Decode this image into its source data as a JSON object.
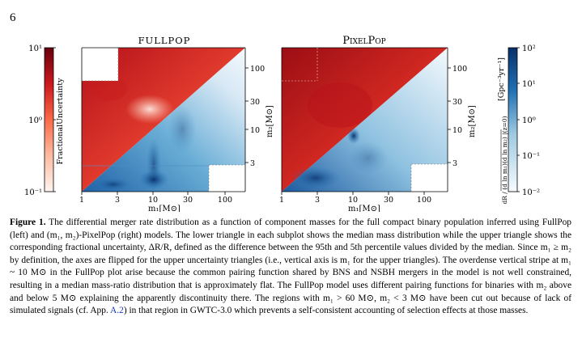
{
  "page_number": "6",
  "figure": {
    "left_panel": {
      "title": "FULLPOP",
      "colorbar_label": "FractionalUncertainty",
      "colorbar_ticks": [
        "10¹",
        "10⁰",
        "10⁻¹"
      ]
    },
    "right_panel": {
      "title": "PixelPop",
      "colorbar_label": "[Gpc⁻³yr⁻¹]",
      "colorbar_label_2": "dR / (d ln m₁)(d ln m₂) |(z=0)",
      "colorbar_ticks": [
        "10²",
        "10¹",
        "10⁰",
        "10⁻¹",
        "10⁻²"
      ]
    },
    "x_ticks": [
      "1",
      "3",
      "10",
      "30",
      "100"
    ],
    "y_ticks": [
      "100",
      "30",
      "10",
      "3"
    ],
    "x_label": "m₁[M⊙]",
    "y_label": "m₂[M⊙]"
  },
  "caption": {
    "label": "Figure 1.",
    "text": "The differential merger rate distribution as a function of component masses for the full compact binary population inferred using FullPop (left) and (m₁, m₂)-PixelPop (right) models. The lower triangle in each subplot shows the median mass distribution while the upper triangle shows the corresponding fractional uncertainty, ΔR/R, defined as the difference between the 95th and 5th percentile values divided by the median. Since m₁ ≥ m₂ by definition, the axes are flipped for the upper uncertainty triangles (i.e., vertical axis is m₁ for the upper triangles). The overdense vertical stripe at m₁ ~ 10 M⊙ in the FullPop plot arise because the common pairing function shared by BNS and NSBH mergers in the model is not well constrained, resulting in a median mass-ratio distribution that is approximately flat. The FullPop model uses different pairing functions for binaries with m₂ above and below 5 M⊙ explaining the apparently discontinuity there. The regions with m₁ > 60 M⊙, m₂ < 3 M⊙ have been cut out because of lack of simulated signals (cf. App. A.2) in that region in GWTC-3.0 which prevents a self-consistent accounting of selection effects at those masses.",
    "link_text": "A.2"
  },
  "colors": {
    "red_dark": "#a50f15",
    "red": "#de2d26",
    "blue_dark": "#08306b",
    "blue": "#2171b5",
    "link": "#1a3dbd"
  }
}
